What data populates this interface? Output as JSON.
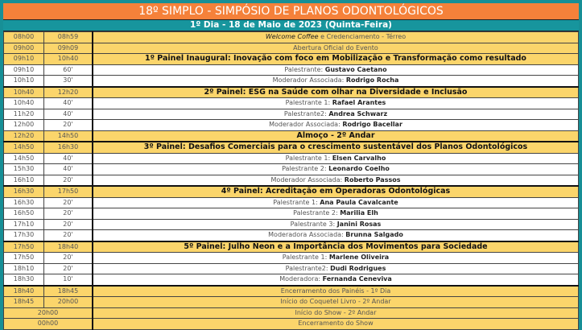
{
  "title": "18º SIMPLO - SIMPÓSIO DE PLANOS ODONTOLÓGICOS",
  "day_header": "1º Dia - 18 de Maio de 2023 (Quinta-Feira)",
  "colors": {
    "title_bg": "#f5813a",
    "day_bg": "#17959d",
    "highlight_row": "#fbd56b",
    "frame": "#178f96"
  },
  "rows": [
    {
      "start": "08h00",
      "end": "08h59",
      "italic": "Welcome Coffee",
      "label": " e Credenciamento - Térreo",
      "style": "y"
    },
    {
      "start": "09h00",
      "end": "09h09",
      "label": "Abertura Oficial do Evento",
      "style": "y"
    },
    {
      "start": "09h10",
      "end": "10h40",
      "label": "1º Painel Inaugural: Inovação com foco em Mobilização e Transformação como resultado",
      "style": "panel"
    },
    {
      "start": "09h10",
      "end": "60'",
      "label": "Palestrante: ",
      "name": "Gustavo Caetano",
      "style": "w"
    },
    {
      "start": "10h10",
      "end": "30'",
      "label": "Moderador Associada: ",
      "name": "Rodrigo Rocha",
      "style": "w"
    },
    {
      "start": "10h40",
      "end": "12h20",
      "label": "2º Painel: ESG na Saúde com olhar na Diversidade e Inclusão",
      "style": "panel"
    },
    {
      "start": "10h40",
      "end": "40'",
      "label": "Palestrante 1: ",
      "name": "Rafael Arantes",
      "style": "w"
    },
    {
      "start": "11h20",
      "end": "40'",
      "label": "Palestrante2: ",
      "name": "Andrea Schwarz",
      "style": "w"
    },
    {
      "start": "12h00",
      "end": "20'",
      "label": "Moderador Associada: ",
      "name": "Rodrigo Bacellar",
      "style": "w"
    },
    {
      "start": "12h20",
      "end": "14h50",
      "label": "Almoço - 2º Andar",
      "style": "panel"
    },
    {
      "start": "14h50",
      "end": "16h30",
      "label": "3º Painel: Desafios Comerciais para o crescimento sustentável dos Planos Odontológicos",
      "style": "panel"
    },
    {
      "start": "14h50",
      "end": "40'",
      "label": "Palestrante 1: ",
      "name": "Elsen Carvalho",
      "style": "w"
    },
    {
      "start": "15h30",
      "end": "40'",
      "label": "Palestrante 2: ",
      "name": "Leonardo Coelho",
      "style": "w"
    },
    {
      "start": "16h10",
      "end": "20'",
      "label": "Moderador Associada: ",
      "name": "Roberto Passos",
      "style": "w"
    },
    {
      "start": "16h30",
      "end": "17h50",
      "label": "4º Painel: Acreditação em Operadoras Odontológicas",
      "style": "panel"
    },
    {
      "start": "16h30",
      "end": "20'",
      "label": "Palestrante 1: ",
      "name": "Ana Paula Cavalcante",
      "style": "w"
    },
    {
      "start": "16h50",
      "end": "20'",
      "label": "Palestrante 2: ",
      "name": "Marilia Elh",
      "style": "w"
    },
    {
      "start": "17h10",
      "end": "20'",
      "label": "Palestrante 3: ",
      "name": "Janini Rosas",
      "style": "w"
    },
    {
      "start": "17h30",
      "end": "20'",
      "label": "Moderadora Associada: ",
      "name": "Brunna Salgado",
      "style": "w"
    },
    {
      "start": "17h50",
      "end": "18h40",
      "label": "5º Painel: Julho Neon e a Importância dos Movimentos para Sociedade",
      "style": "panel"
    },
    {
      "start": "17h50",
      "end": "20'",
      "label": "Palestrante 1: ",
      "name": "Marlene Oliveira",
      "style": "w"
    },
    {
      "start": "18h10",
      "end": "20'",
      "label": "Palestrante2: ",
      "name": "Dudi Rodrigues",
      "style": "w"
    },
    {
      "start": "18h30",
      "end": "10'",
      "label": "Moderadora: ",
      "name": "Fernanda Ceneviva",
      "style": "w"
    },
    {
      "start": "18h40",
      "end": "18h45",
      "label": "Encerramento dos Painéis - 1º Dia",
      "style": "y"
    },
    {
      "start": "18h45",
      "end": "20h00",
      "label": "Início do Coquetel Livro - 2º Andar",
      "style": "y"
    },
    {
      "start": "20h00",
      "label": "Início do Show - 2º Andar",
      "style": "y"
    },
    {
      "start": "00h00",
      "label": "Encerramento do Show",
      "style": "y"
    }
  ]
}
